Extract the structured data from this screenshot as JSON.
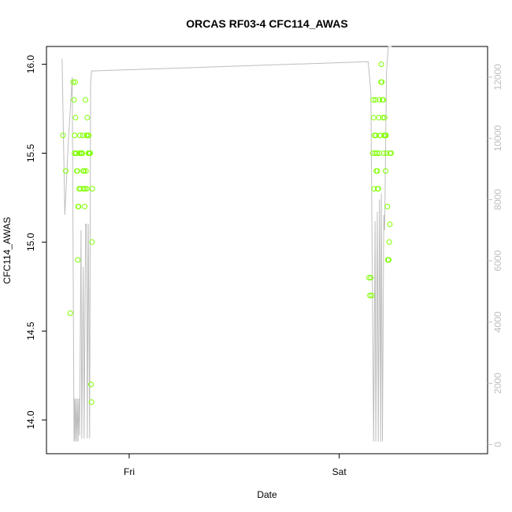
{
  "chart_data": {
    "type": "scatter",
    "title": "ORCAS RF03-4 CFC114_AWAS",
    "xlabel": "Date",
    "ylabel": "CFC114_AWAS",
    "x_ticks": [
      "Fri",
      "Sat"
    ],
    "y_ticks": [
      "14.0",
      "14.5",
      "15.0",
      "15.5",
      "16.0"
    ],
    "y2_ticks": [
      "0",
      "2000",
      "4000",
      "6000",
      "8000",
      "10000",
      "12000"
    ],
    "xlim_hours": [
      -4.5,
      19.5
    ],
    "ylim": [
      13.81,
      16.1
    ],
    "y2lim": [
      -300,
      13000
    ],
    "grid": false,
    "legend": "none",
    "colors": {
      "points": "#7fff00",
      "altitude": "#bebebe",
      "axis": "#000000",
      "right_axis": "#bebebe"
    },
    "series": [
      {
        "values": [
          [
            -3.6,
            15.6
          ],
          [
            -3.45,
            15.4
          ],
          [
            -3.2,
            14.6
          ],
          [
            -3.05,
            15.9
          ],
          [
            -3.0,
            15.8
          ],
          [
            -2.98,
            15.5
          ],
          [
            -2.96,
            15.6
          ],
          [
            -2.94,
            15.9
          ],
          [
            -2.92,
            15.7
          ],
          [
            -2.9,
            15.5
          ],
          [
            -2.88,
            15.5
          ],
          [
            -2.85,
            15.4
          ],
          [
            -2.82,
            15.4
          ],
          [
            -2.8,
            14.9
          ],
          [
            -2.78,
            15.2
          ],
          [
            -2.75,
            15.2
          ],
          [
            -2.72,
            15.3
          ],
          [
            -2.7,
            15.5
          ],
          [
            -2.68,
            15.6
          ],
          [
            -2.65,
            15.3
          ],
          [
            -2.62,
            15.5
          ],
          [
            -2.6,
            15.5
          ],
          [
            -2.55,
            15.5
          ],
          [
            -2.52,
            15.6
          ],
          [
            -2.5,
            15.4
          ],
          [
            -2.48,
            15.3
          ],
          [
            -2.45,
            15.4
          ],
          [
            -2.42,
            15.2
          ],
          [
            -2.4,
            15.3
          ],
          [
            -2.38,
            15.8
          ],
          [
            -2.35,
            15.4
          ],
          [
            -2.32,
            15.6
          ],
          [
            -2.3,
            15.3
          ],
          [
            -2.28,
            15.7
          ],
          [
            -2.25,
            15.6
          ],
          [
            -2.22,
            15.5
          ],
          [
            -2.2,
            15.6
          ],
          [
            -2.18,
            15.5
          ],
          [
            -2.15,
            15.5
          ],
          [
            -2.12,
            15.5
          ],
          [
            -2.08,
            14.2
          ],
          [
            -2.05,
            14.1
          ],
          [
            -2.02,
            15.0
          ],
          [
            -2.0,
            15.3
          ],
          [
            13.05,
            14.8
          ],
          [
            13.1,
            14.7
          ],
          [
            13.15,
            14.8
          ],
          [
            13.2,
            14.7
          ],
          [
            13.25,
            15.5
          ],
          [
            13.28,
            15.8
          ],
          [
            13.3,
            15.7
          ],
          [
            13.32,
            15.3
          ],
          [
            13.35,
            15.6
          ],
          [
            13.38,
            15.5
          ],
          [
            13.4,
            15.8
          ],
          [
            13.42,
            15.6
          ],
          [
            13.45,
            15.4
          ],
          [
            13.48,
            15.5
          ],
          [
            13.5,
            15.4
          ],
          [
            13.52,
            15.3
          ],
          [
            13.55,
            15.3
          ],
          [
            13.58,
            15.7
          ],
          [
            13.6,
            15.5
          ],
          [
            13.62,
            15.8
          ],
          [
            13.65,
            15.6
          ],
          [
            13.68,
            15.6
          ],
          [
            13.7,
            15.9
          ],
          [
            13.72,
            16.0
          ],
          [
            13.75,
            15.9
          ],
          [
            13.78,
            15.8
          ],
          [
            13.8,
            15.7
          ],
          [
            13.82,
            15.8
          ],
          [
            13.85,
            15.5
          ],
          [
            13.88,
            15.6
          ],
          [
            13.9,
            15.7
          ],
          [
            13.92,
            15.6
          ],
          [
            13.95,
            15.4
          ],
          [
            13.98,
            15.6
          ],
          [
            14.0,
            15.5
          ],
          [
            14.05,
            15.2
          ],
          [
            14.08,
            14.9
          ],
          [
            14.1,
            14.9
          ],
          [
            14.12,
            14.9
          ],
          [
            14.15,
            15.0
          ],
          [
            14.18,
            15.1
          ],
          [
            14.2,
            15.5
          ],
          [
            14.25,
            15.5
          ]
        ]
      },
      {
        "axis": "right",
        "values": [
          [
            -3.65,
            12600
          ],
          [
            -3.5,
            7500
          ],
          [
            -3.3,
            10000
          ],
          [
            -3.1,
            12000
          ],
          [
            -3.0,
            100
          ],
          [
            -2.97,
            1500
          ],
          [
            -2.94,
            100
          ],
          [
            -2.9,
            1500
          ],
          [
            -2.86,
            100
          ],
          [
            -2.82,
            1500
          ],
          [
            -2.78,
            100
          ],
          [
            -2.74,
            1500
          ],
          [
            -2.7,
            300
          ],
          [
            -2.62,
            7000
          ],
          [
            -2.58,
            200
          ],
          [
            -2.5,
            5800
          ],
          [
            -2.45,
            200
          ],
          [
            -2.37,
            7200
          ],
          [
            -2.32,
            7200
          ],
          [
            -2.28,
            200
          ],
          [
            -2.22,
            7200
          ],
          [
            -2.15,
            200
          ],
          [
            -2.1,
            11800
          ],
          [
            -2.05,
            12200
          ],
          [
            12.9,
            12500
          ],
          [
            13.0,
            12500
          ],
          [
            13.05,
            12200
          ],
          [
            13.15,
            11500
          ],
          [
            13.3,
            100
          ],
          [
            13.38,
            7300
          ],
          [
            13.42,
            100
          ],
          [
            13.5,
            7600
          ],
          [
            13.55,
            100
          ],
          [
            13.62,
            8000
          ],
          [
            13.68,
            100
          ],
          [
            13.72,
            8200
          ],
          [
            13.78,
            100
          ],
          [
            13.85,
            7500
          ],
          [
            13.9,
            7000
          ],
          [
            14.0,
            12200
          ],
          [
            14.1,
            13000
          ],
          [
            14.28,
            13000
          ]
        ]
      }
    ]
  }
}
